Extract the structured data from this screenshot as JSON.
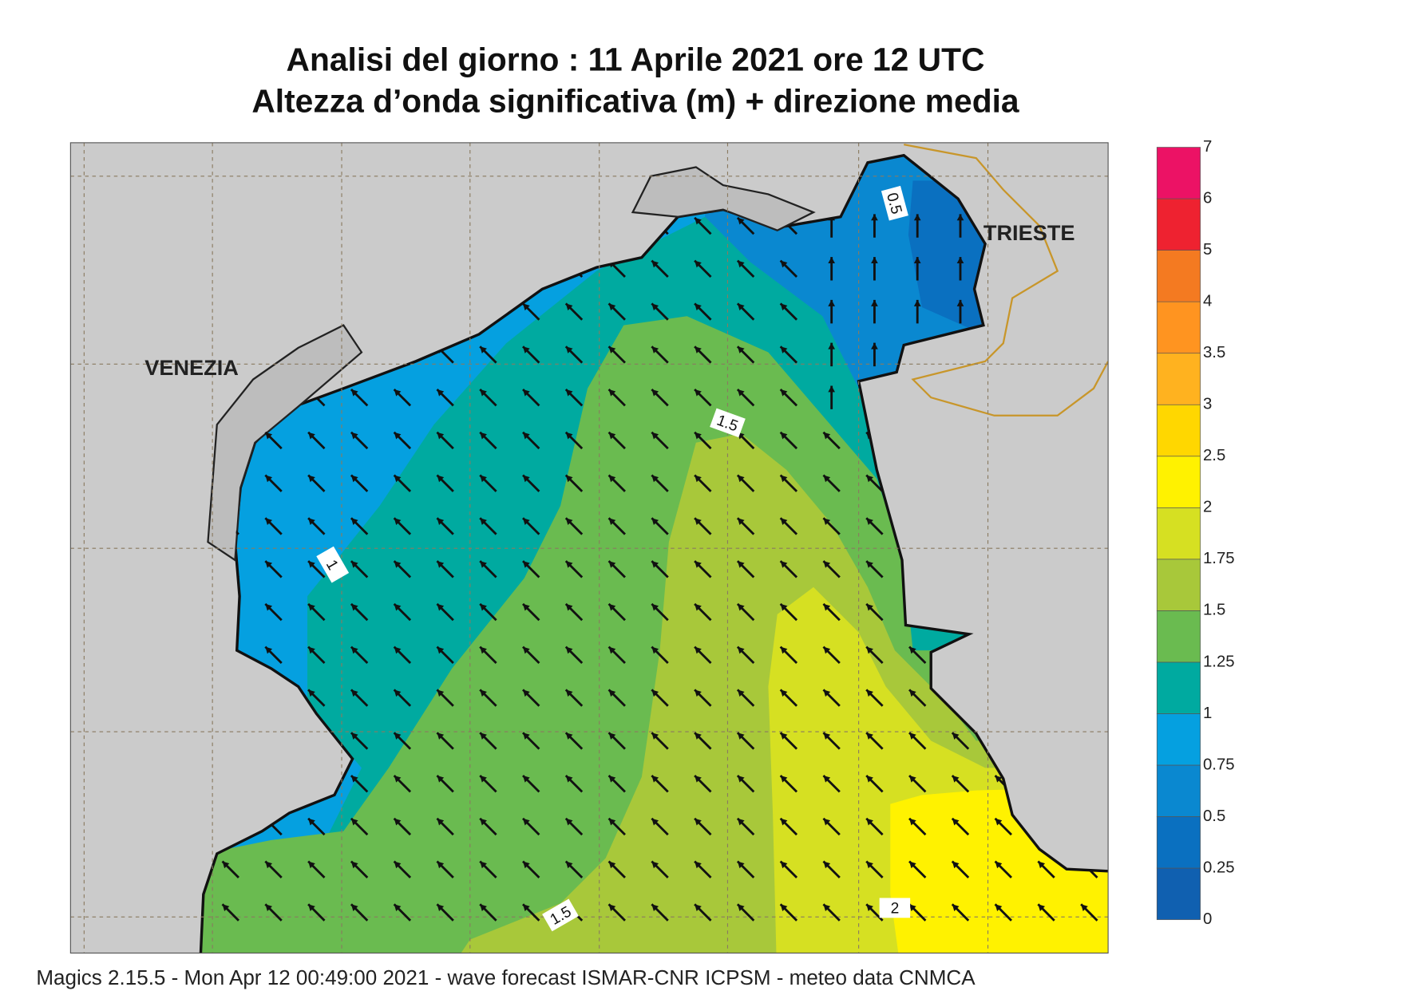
{
  "header": {
    "title_line1": "Analisi del giorno :  11   Aprile  2021   ore 12 UTC",
    "title_line2": "Altezza d’onda significativa (m) + direzione media"
  },
  "map": {
    "places": [
      "VENEZIA",
      "TRIESTE"
    ],
    "contour_labels": [
      "0.5",
      "1",
      "1.5",
      "1.5",
      "2"
    ]
  },
  "legend": {
    "levels": [
      0,
      0.25,
      0.5,
      0.75,
      1,
      1.25,
      1.5,
      1.75,
      2,
      2.5,
      3,
      3.5,
      4,
      5,
      6,
      7
    ],
    "colors": [
      "#1060b0",
      "#0a70c0",
      "#0a88d0",
      "#05a0e0",
      "#00aaa0",
      "#6abb50",
      "#a8c83a",
      "#d6e022",
      "#fff200",
      "#ffd700",
      "#ffb21f",
      "#ff9420",
      "#f47a21",
      "#ee2230",
      "#ec1265"
    ]
  },
  "footer": "Magics 2.15.5 - Mon Apr 12 00:49:00 2021 - wave forecast  ISMAR-CNR  ICPSM - meteo data   CNMCA"
}
